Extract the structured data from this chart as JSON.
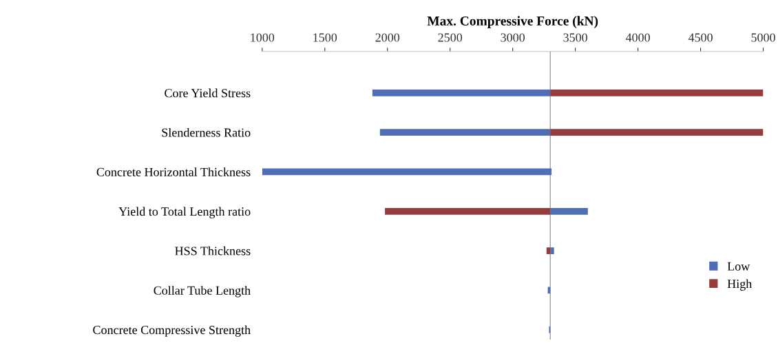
{
  "chart_data": {
    "type": "bar",
    "orientation": "horizontal",
    "xlabel": "Max. Compressive Force (kN)",
    "categories": [
      "Core Yield Stress",
      "Slenderness Ratio",
      "Concrete Horizontal Thickness",
      "Yield to Total Length ratio",
      "HSS Thickness",
      "Collar Tube Length",
      "Concrete Compressive Strength"
    ],
    "series": [
      {
        "name": "Low",
        "color": "#4f6eb6",
        "base": [
          1880,
          1940,
          1000,
          3300,
          3300,
          3280,
          3290
        ],
        "values": [
          1420,
          1360,
          2310,
          300,
          30,
          20,
          10
        ]
      },
      {
        "name": "High",
        "color": "#973c3c",
        "base": [
          3300,
          3300,
          null,
          1980,
          3270,
          null,
          null
        ],
        "values": [
          1700,
          1700,
          null,
          1320,
          30,
          null,
          null
        ]
      }
    ],
    "xlim": [
      1000,
      5000
    ],
    "xticks": [
      1000,
      1500,
      2000,
      2500,
      3000,
      3500,
      4000,
      4500,
      5000
    ],
    "ref_lines": [
      {
        "axis": "x",
        "value": 3300,
        "color": "#a0a0a0"
      }
    ],
    "legend": "right",
    "grid": false
  }
}
